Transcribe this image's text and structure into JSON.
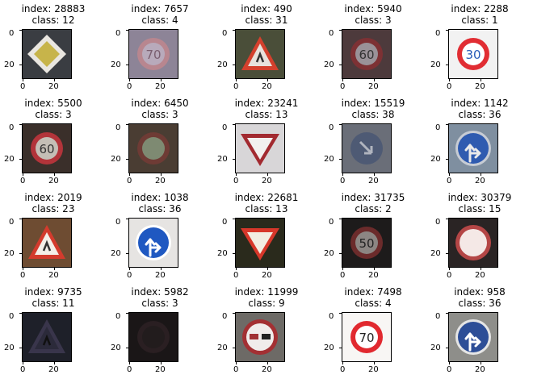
{
  "chart_data": {
    "type": "image-grid",
    "rows": 4,
    "cols": 5,
    "axis_ticks": {
      "x": [
        "0",
        "20"
      ],
      "y": [
        "0",
        "20"
      ]
    },
    "panels": [
      {
        "index": "index: 28883",
        "class": "class: 12",
        "sign": "priority",
        "bg": "#3a3d42",
        "fg": "#c7b44a",
        "rim": "#e9e6e0"
      },
      {
        "index": "index: 7657",
        "class": "class: 4",
        "sign": "speed",
        "text": "70",
        "bg": "#8d8497",
        "rim": "#b8868f",
        "face": "#b8aabb",
        "ink": "#7a5f70"
      },
      {
        "index": "index: 490",
        "class": "class: 31",
        "sign": "triangle",
        "bg": "#4a4e39",
        "rim": "#d4402d",
        "face": "#e8e2dc",
        "ink": "#333"
      },
      {
        "index": "index: 5940",
        "class": "class: 3",
        "sign": "speed",
        "text": "60",
        "bg": "#4d3a3c",
        "rim": "#7d3134",
        "face": "#9a9298",
        "ink": "#333"
      },
      {
        "index": "index: 2288",
        "class": "class: 1",
        "sign": "speed",
        "text": "30",
        "bg": "#f2f2f2",
        "rim": "#e12d33",
        "face": "#ffffff",
        "ink": "#2a5db8"
      },
      {
        "index": "index: 5500",
        "class": "class: 3",
        "sign": "speed",
        "text": "60",
        "bg": "#3a2f2a",
        "rim": "#b2343a",
        "face": "#c4bfb6",
        "ink": "#333"
      },
      {
        "index": "index: 6450",
        "class": "class: 3",
        "sign": "speed",
        "text": "",
        "bg": "#4a3d33",
        "rim": "#6e3b35",
        "face": "#7e8a72",
        "ink": "#555"
      },
      {
        "index": "index: 23241",
        "class": "class: 13",
        "sign": "yield",
        "bg": "#d8d6d8",
        "rim": "#a22a30",
        "face": "#f2f0ef",
        "ink": "#333"
      },
      {
        "index": "index: 15519",
        "class": "class: 38",
        "sign": "round-arrow",
        "bg": "#6a6e78",
        "rim": "#5b6a8a",
        "face": "#4e5a74",
        "ink": "#b0b4be"
      },
      {
        "index": "index: 1142",
        "class": "class: 36",
        "sign": "arrows",
        "bg": "#7f8fa0",
        "rim": "#c7ccd4",
        "face": "#2f5bb0",
        "ink": "#eaeaea"
      },
      {
        "index": "index: 2019",
        "class": "class: 23",
        "sign": "triangle",
        "bg": "#6e4c32",
        "rim": "#d33b2d",
        "face": "#f3efe8",
        "ink": "#333"
      },
      {
        "index": "index: 1038",
        "class": "class: 36",
        "sign": "arrows",
        "bg": "#e6e4e2",
        "rim": "#ffffff",
        "face": "#1f58c1",
        "ink": "#ffffff"
      },
      {
        "index": "index: 22681",
        "class": "class: 13",
        "sign": "yield",
        "bg": "#2a2a1c",
        "rim": "#d7372a",
        "face": "#f2ede2",
        "ink": "#333"
      },
      {
        "index": "index: 31735",
        "class": "class: 2",
        "sign": "speed",
        "text": "50",
        "bg": "#1d1b1b",
        "rim": "#6b2b2b",
        "face": "#8c8683",
        "ink": "#222"
      },
      {
        "index": "index: 30379",
        "class": "class: 15",
        "sign": "noentry-white",
        "bg": "#2a2424",
        "rim": "#b44646",
        "face": "#f4e8e6",
        "ink": "#fff"
      },
      {
        "index": "index: 9735",
        "class": "class: 11",
        "sign": "triangle-dark",
        "bg": "#1e2029",
        "rim": "#39354b",
        "face": "#2b2a3a",
        "ink": "#111"
      },
      {
        "index": "index: 5982",
        "class": "class: 3",
        "sign": "speed-dark",
        "text": "",
        "bg": "#1a1617",
        "rim": "#2a1f22",
        "face": "#221c1d",
        "ink": "#111"
      },
      {
        "index": "index: 11999",
        "class": "class: 9",
        "sign": "nopassing",
        "bg": "#6d6a66",
        "rim": "#a33033",
        "face": "#f0eceb",
        "ink": "#333"
      },
      {
        "index": "index: 7498",
        "class": "class: 4",
        "sign": "speed",
        "text": "70",
        "bg": "#f8f6f4",
        "rim": "#e1292f",
        "face": "#ffffff",
        "ink": "#222"
      },
      {
        "index": "index: 958",
        "class": "class: 36",
        "sign": "arrows",
        "bg": "#8e8e8a",
        "rim": "#e5e5e5",
        "face": "#2d4e97",
        "ink": "#ffffff"
      }
    ]
  }
}
